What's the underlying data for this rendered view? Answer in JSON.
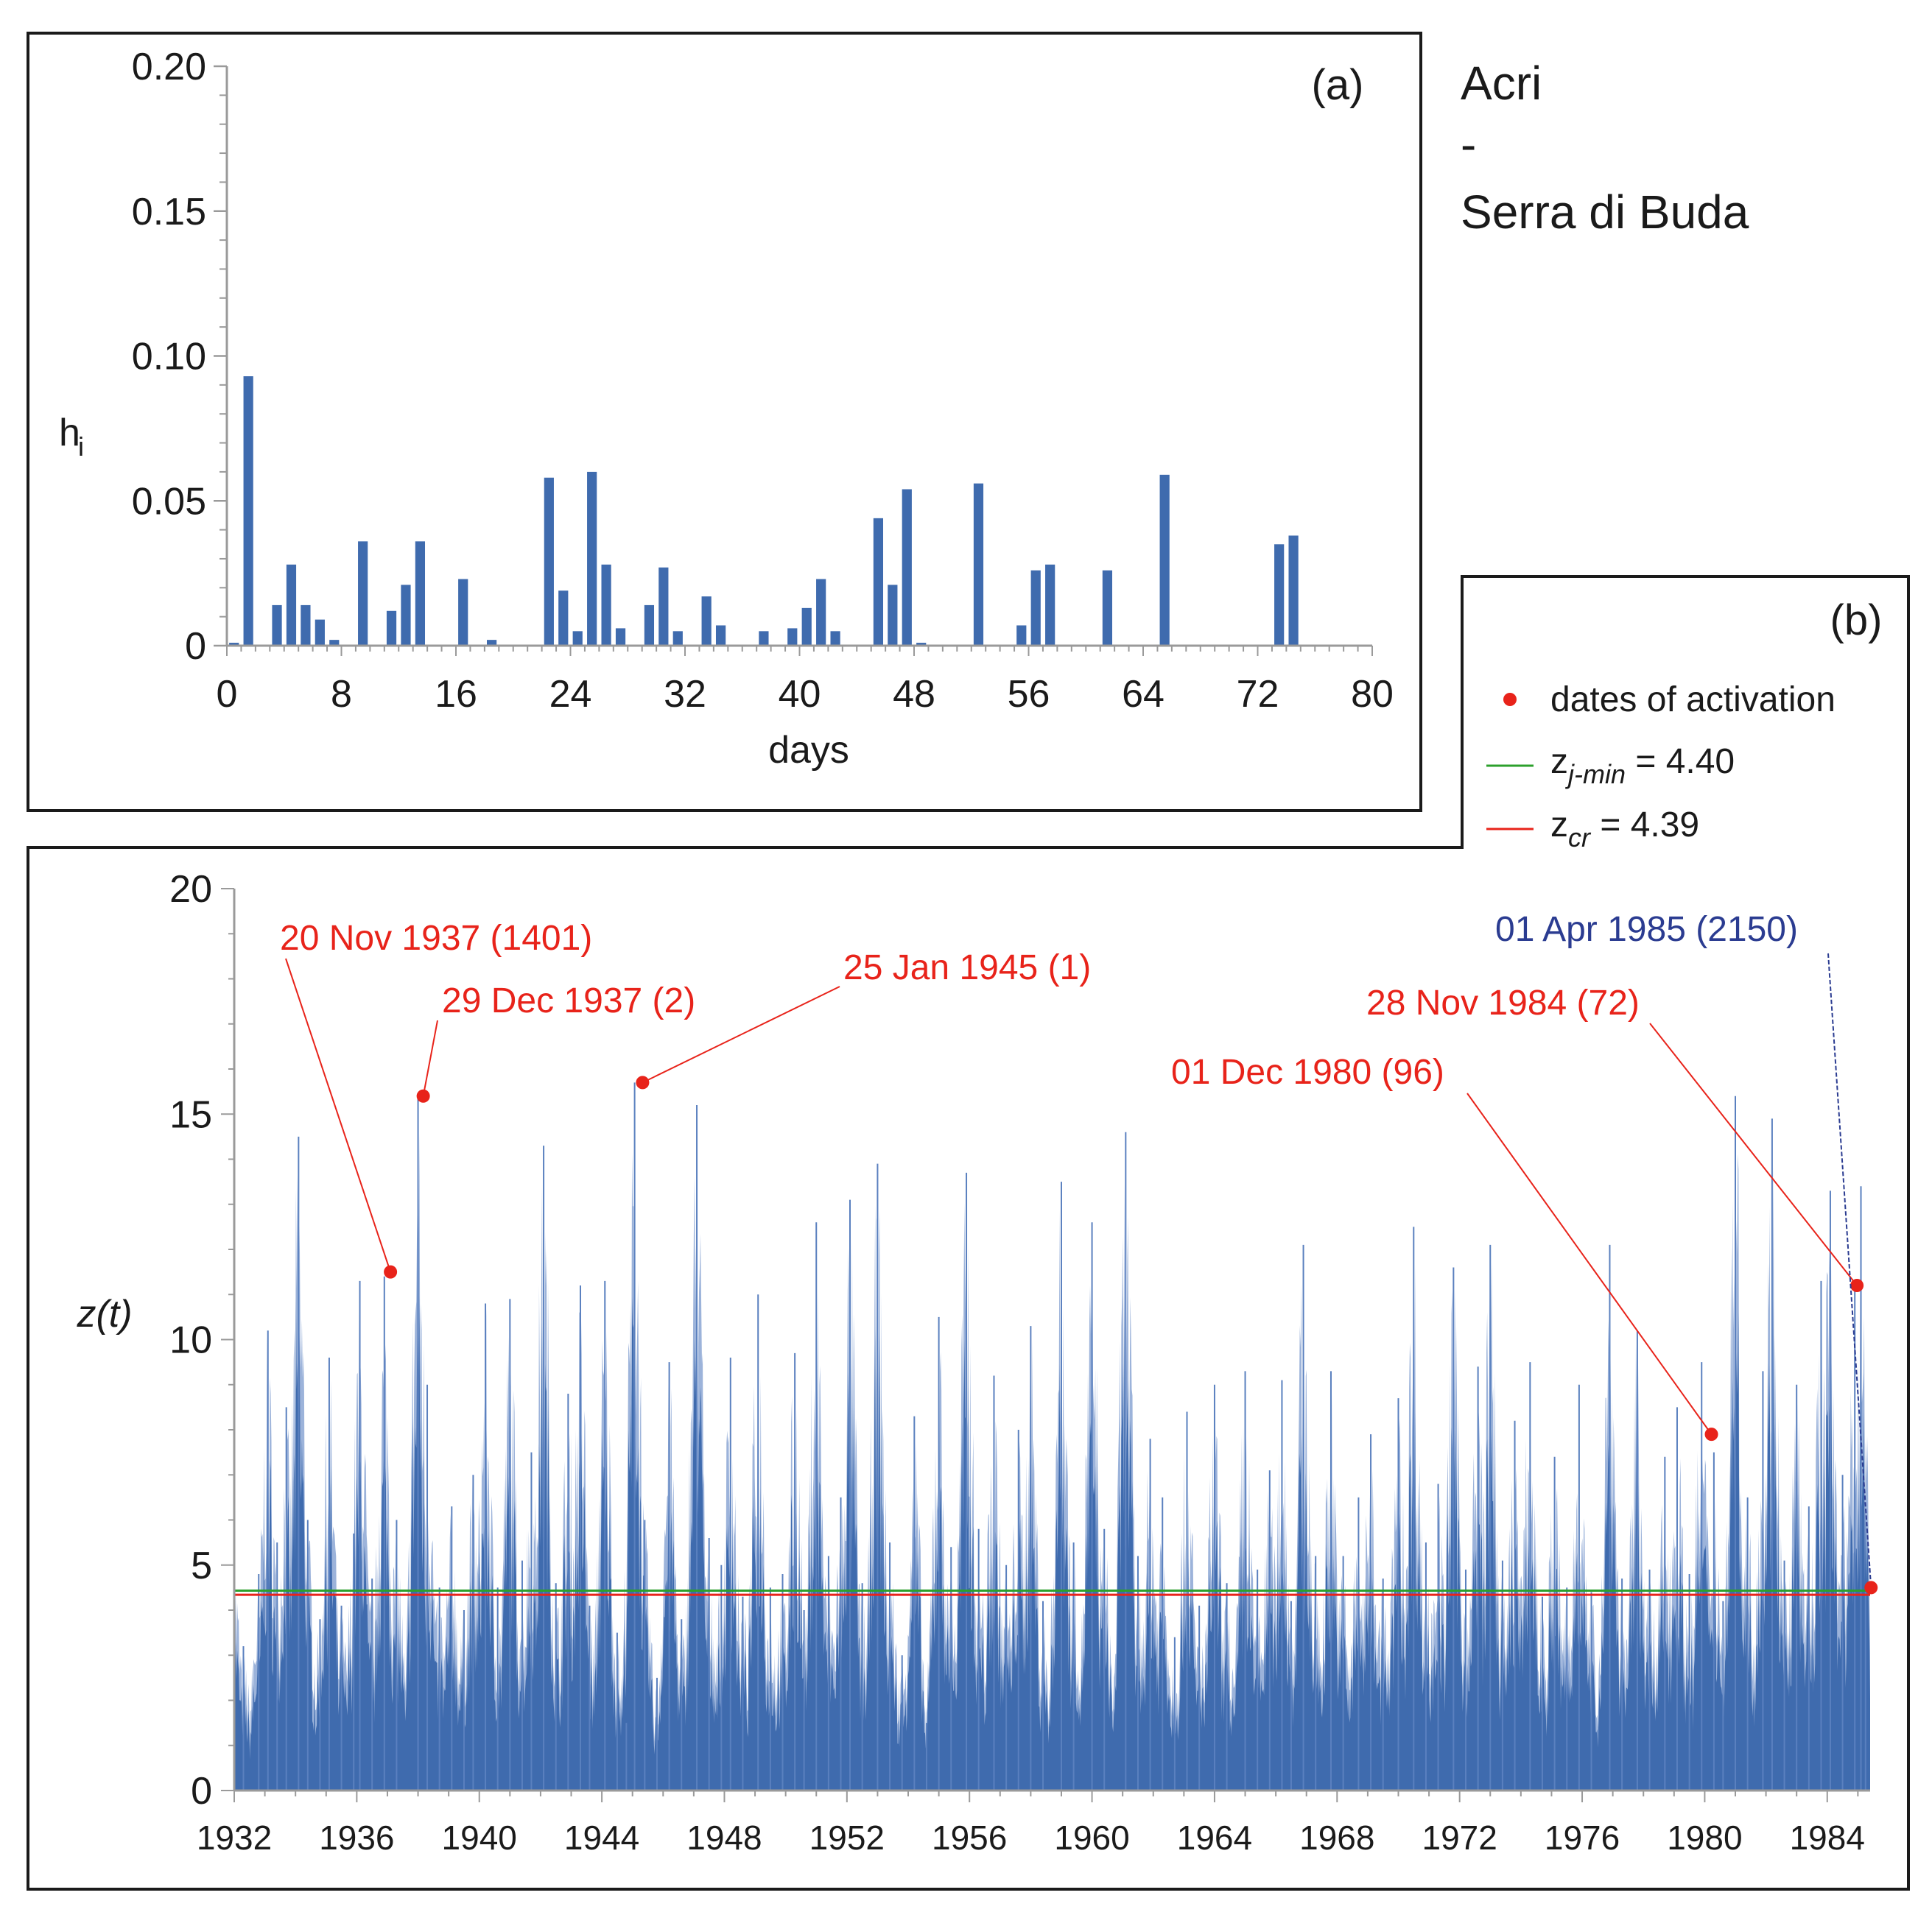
{
  "site": {
    "line1": "Acri",
    "line2": "-",
    "line3": "Serra di Buda"
  },
  "colors": {
    "bar": "#3F6BAE",
    "activation": "#E8231A",
    "zjmin_line": "#2CA02C",
    "zcr_line": "#E8231A",
    "annotation_blue": "#2B3C91",
    "axis": "#9A9A9A"
  },
  "chart_data": [
    {
      "panel": "a",
      "type": "bar",
      "panel_label": "(a)",
      "xlabel": "days",
      "ylabel": "h",
      "ylabel_sub": "i",
      "xlim": [
        0,
        80
      ],
      "ylim": [
        0,
        0.2
      ],
      "xticks": [
        "0",
        "8",
        "16",
        "24",
        "32",
        "40",
        "48",
        "56",
        "64",
        "72",
        "80"
      ],
      "yticks": [
        "0",
        "0.05",
        "0.10",
        "0.15",
        "0.20"
      ],
      "x": [
        0,
        1,
        3,
        4,
        5,
        6,
        7,
        9,
        11,
        12,
        13,
        16,
        18,
        22,
        23,
        24,
        25,
        26,
        27,
        29,
        30,
        31,
        33,
        34,
        37,
        39,
        40,
        41,
        42,
        45,
        46,
        47,
        48,
        52,
        55,
        56,
        57,
        61,
        65,
        73,
        74
      ],
      "values": [
        0.001,
        0.093,
        0.014,
        0.028,
        0.014,
        0.009,
        0.002,
        0.036,
        0.012,
        0.021,
        0.036,
        0.023,
        0.002,
        0.058,
        0.019,
        0.005,
        0.06,
        0.028,
        0.006,
        0.014,
        0.027,
        0.005,
        0.017,
        0.007,
        0.005,
        0.006,
        0.013,
        0.023,
        0.005,
        0.044,
        0.021,
        0.054,
        0.001,
        0.056,
        0.007,
        0.026,
        0.028,
        0.026,
        0.059,
        0.035,
        0.038
      ]
    },
    {
      "panel": "b",
      "type": "area",
      "panel_label": "(b)",
      "ylabel": "z(t)",
      "xlim": [
        1932,
        1985.4
      ],
      "ylim": [
        0,
        20
      ],
      "xticks": [
        "1932",
        "1936",
        "1940",
        "1944",
        "1948",
        "1952",
        "1956",
        "1960",
        "1964",
        "1968",
        "1972",
        "1976",
        "1980",
        "1984"
      ],
      "yticks": [
        "0",
        "5",
        "10",
        "15",
        "20"
      ],
      "legend": {
        "activation_label": "dates of activation",
        "zjmin_label_main": "z",
        "zjmin_label_sub": "j-min",
        "zjmin_label_value": " = 4.40",
        "zcr_label_main": "z",
        "zcr_label_sub": "cr",
        "zcr_label_value": " = 4.39"
      },
      "thresholds": {
        "z_j_min": 4.4,
        "z_cr": 4.39
      },
      "series_peaks": [
        {
          "year": 1932.0,
          "value": 5.3
        },
        {
          "year": 1932.3,
          "value": 3.2
        },
        {
          "year": 1932.8,
          "value": 4.8
        },
        {
          "year": 1933.1,
          "value": 10.2
        },
        {
          "year": 1933.4,
          "value": 5.5
        },
        {
          "year": 1933.7,
          "value": 8.5
        },
        {
          "year": 1934.1,
          "value": 14.5
        },
        {
          "year": 1934.4,
          "value": 6.0
        },
        {
          "year": 1934.8,
          "value": 3.8
        },
        {
          "year": 1935.1,
          "value": 9.6
        },
        {
          "year": 1935.5,
          "value": 4.1
        },
        {
          "year": 1935.9,
          "value": 5.7
        },
        {
          "year": 1936.1,
          "value": 11.3
        },
        {
          "year": 1936.5,
          "value": 4.7
        },
        {
          "year": 1936.9,
          "value": 11.4
        },
        {
          "year": 1937.3,
          "value": 6.0
        },
        {
          "year": 1938.0,
          "value": 15.4
        },
        {
          "year": 1938.3,
          "value": 9.0
        },
        {
          "year": 1938.7,
          "value": 4.5
        },
        {
          "year": 1939.1,
          "value": 6.3
        },
        {
          "year": 1939.5,
          "value": 4.0
        },
        {
          "year": 1939.8,
          "value": 7.0
        },
        {
          "year": 1940.2,
          "value": 10.8
        },
        {
          "year": 1940.6,
          "value": 4.5
        },
        {
          "year": 1941.0,
          "value": 10.9
        },
        {
          "year": 1941.4,
          "value": 5.1
        },
        {
          "year": 1941.7,
          "value": 7.5
        },
        {
          "year": 1942.1,
          "value": 14.3
        },
        {
          "year": 1942.5,
          "value": 4.6
        },
        {
          "year": 1942.9,
          "value": 8.8
        },
        {
          "year": 1943.3,
          "value": 11.2
        },
        {
          "year": 1943.6,
          "value": 4.1
        },
        {
          "year": 1944.1,
          "value": 11.3
        },
        {
          "year": 1944.5,
          "value": 3.5
        },
        {
          "year": 1944.8,
          "value": 1.5
        },
        {
          "year": 1945.07,
          "value": 15.7
        },
        {
          "year": 1945.4,
          "value": 6.0
        },
        {
          "year": 1945.8,
          "value": 2.5
        },
        {
          "year": 1946.2,
          "value": 9.5
        },
        {
          "year": 1946.6,
          "value": 3.8
        },
        {
          "year": 1947.1,
          "value": 15.2
        },
        {
          "year": 1947.5,
          "value": 5.6
        },
        {
          "year": 1947.9,
          "value": 5.0
        },
        {
          "year": 1948.2,
          "value": 9.6
        },
        {
          "year": 1948.6,
          "value": 4.3
        },
        {
          "year": 1949.1,
          "value": 11.0
        },
        {
          "year": 1949.5,
          "value": 4.5
        },
        {
          "year": 1949.9,
          "value": 4.8
        },
        {
          "year": 1950.3,
          "value": 9.7
        },
        {
          "year": 1950.6,
          "value": 4.0
        },
        {
          "year": 1951.0,
          "value": 12.6
        },
        {
          "year": 1951.4,
          "value": 5.2
        },
        {
          "year": 1951.8,
          "value": 6.5
        },
        {
          "year": 1952.1,
          "value": 13.1
        },
        {
          "year": 1952.5,
          "value": 4.6
        },
        {
          "year": 1953.0,
          "value": 13.9
        },
        {
          "year": 1953.4,
          "value": 5.5
        },
        {
          "year": 1953.8,
          "value": 3.0
        },
        {
          "year": 1954.2,
          "value": 8.3
        },
        {
          "year": 1954.6,
          "value": 1.5
        },
        {
          "year": 1955.0,
          "value": 10.5
        },
        {
          "year": 1955.4,
          "value": 5.4
        },
        {
          "year": 1955.9,
          "value": 13.7
        },
        {
          "year": 1956.3,
          "value": 5.8
        },
        {
          "year": 1956.8,
          "value": 9.2
        },
        {
          "year": 1957.2,
          "value": 5.0
        },
        {
          "year": 1957.6,
          "value": 8.0
        },
        {
          "year": 1958.0,
          "value": 10.3
        },
        {
          "year": 1958.4,
          "value": 4.2
        },
        {
          "year": 1959.0,
          "value": 13.5
        },
        {
          "year": 1959.4,
          "value": 5.5
        },
        {
          "year": 1960.0,
          "value": 12.6
        },
        {
          "year": 1960.4,
          "value": 5.8
        },
        {
          "year": 1961.1,
          "value": 14.6
        },
        {
          "year": 1961.5,
          "value": 5.2
        },
        {
          "year": 1961.9,
          "value": 7.8
        },
        {
          "year": 1962.3,
          "value": 6.5
        },
        {
          "year": 1962.7,
          "value": 3.4
        },
        {
          "year": 1963.1,
          "value": 8.4
        },
        {
          "year": 1963.5,
          "value": 4.1
        },
        {
          "year": 1964.0,
          "value": 9.0
        },
        {
          "year": 1964.4,
          "value": 4.6
        },
        {
          "year": 1965.0,
          "value": 9.3
        },
        {
          "year": 1965.4,
          "value": 4.9
        },
        {
          "year": 1965.8,
          "value": 7.1
        },
        {
          "year": 1966.2,
          "value": 9.1
        },
        {
          "year": 1966.5,
          "value": 4.2
        },
        {
          "year": 1966.9,
          "value": 12.1
        },
        {
          "year": 1967.3,
          "value": 5.2
        },
        {
          "year": 1967.8,
          "value": 9.3
        },
        {
          "year": 1968.2,
          "value": 5.2
        },
        {
          "year": 1968.7,
          "value": 6.5
        },
        {
          "year": 1969.1,
          "value": 7.9
        },
        {
          "year": 1969.5,
          "value": 4.7
        },
        {
          "year": 1970.0,
          "value": 8.7
        },
        {
          "year": 1970.5,
          "value": 12.5
        },
        {
          "year": 1970.9,
          "value": 5.5
        },
        {
          "year": 1971.3,
          "value": 6.8
        },
        {
          "year": 1971.8,
          "value": 11.6
        },
        {
          "year": 1972.2,
          "value": 4.9
        },
        {
          "year": 1972.6,
          "value": 9.4
        },
        {
          "year": 1973.0,
          "value": 12.1
        },
        {
          "year": 1973.4,
          "value": 5.1
        },
        {
          "year": 1973.8,
          "value": 8.2
        },
        {
          "year": 1974.3,
          "value": 9.5
        },
        {
          "year": 1974.7,
          "value": 4.3
        },
        {
          "year": 1975.1,
          "value": 7.4
        },
        {
          "year": 1975.5,
          "value": 4.5
        },
        {
          "year": 1975.9,
          "value": 9.0
        },
        {
          "year": 1976.3,
          "value": 4.4
        },
        {
          "year": 1976.9,
          "value": 12.1
        },
        {
          "year": 1977.3,
          "value": 4.7
        },
        {
          "year": 1977.8,
          "value": 10.2
        },
        {
          "year": 1978.2,
          "value": 4.9
        },
        {
          "year": 1978.7,
          "value": 7.4
        },
        {
          "year": 1979.1,
          "value": 8.5
        },
        {
          "year": 1979.5,
          "value": 4.8
        },
        {
          "year": 1979.9,
          "value": 9.5
        },
        {
          "year": 1980.3,
          "value": 7.5
        },
        {
          "year": 1980.6,
          "value": 4.2
        },
        {
          "year": 1981.0,
          "value": 15.4
        },
        {
          "year": 1981.4,
          "value": 6.5
        },
        {
          "year": 1981.9,
          "value": 9.3
        },
        {
          "year": 1982.2,
          "value": 14.9
        },
        {
          "year": 1982.6,
          "value": 5.1
        },
        {
          "year": 1983.0,
          "value": 9.0
        },
        {
          "year": 1983.4,
          "value": 6.3
        },
        {
          "year": 1983.8,
          "value": 11.3
        },
        {
          "year": 1984.1,
          "value": 13.3
        },
        {
          "year": 1984.5,
          "value": 7.0
        },
        {
          "year": 1984.9,
          "value": 11.2
        },
        {
          "year": 1985.1,
          "value": 13.4
        },
        {
          "year": 1985.25,
          "value": 4.5
        }
      ],
      "activations": [
        {
          "label": "20 Nov 1937 (1401)",
          "year": 1937.1,
          "value": 11.5,
          "color": "red"
        },
        {
          "label": "29 Dec 1937 (2)",
          "year": 1938.17,
          "value": 15.4,
          "color": "red"
        },
        {
          "label": "25 Jan 1945 (1)",
          "year": 1945.33,
          "value": 15.7,
          "color": "red"
        },
        {
          "label": "01 Dec 1980 (96)",
          "year": 1980.22,
          "value": 7.9,
          "color": "red"
        },
        {
          "label": "28 Nov 1984 (72)",
          "year": 1984.97,
          "value": 11.2,
          "color": "red"
        },
        {
          "label": "01 Apr 1985 (2150)",
          "year": 1985.43,
          "value": 4.5,
          "color": "blue"
        }
      ]
    }
  ]
}
